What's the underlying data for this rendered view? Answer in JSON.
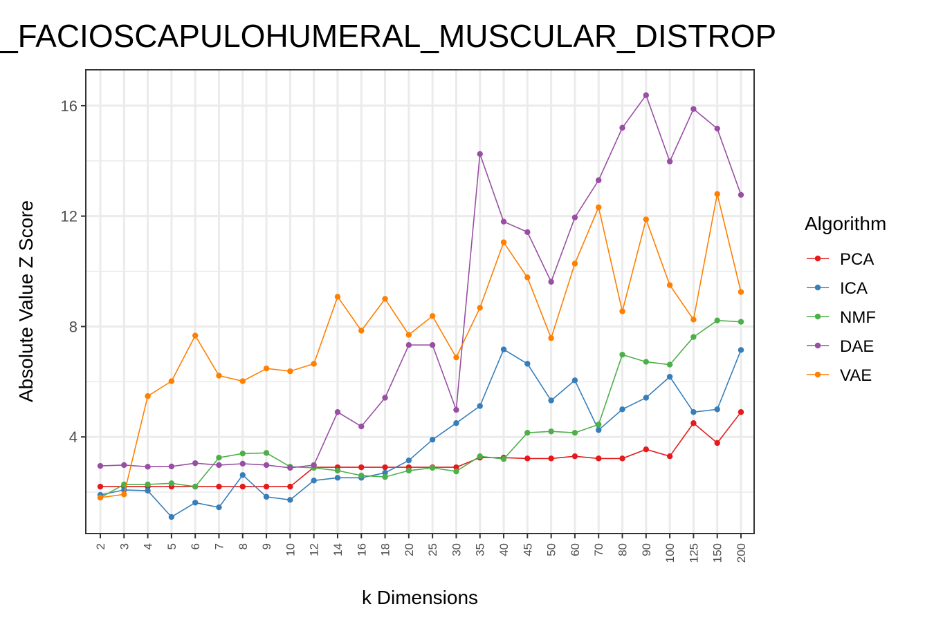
{
  "chart_data": {
    "type": "line",
    "title": "_FACIOSCAPULOHUMERAL_MUSCULAR_DISTROP",
    "xlabel": "k Dimensions",
    "ylabel": "Absolute Value Z Score",
    "ylim": [
      0.5,
      17.3
    ],
    "yticks": [
      4,
      8,
      12,
      16
    ],
    "grid": true,
    "legend_position": "right",
    "legend_title": "Algorithm",
    "categories": [
      "2",
      "3",
      "4",
      "5",
      "6",
      "7",
      "8",
      "9",
      "10",
      "12",
      "14",
      "16",
      "18",
      "20",
      "25",
      "30",
      "35",
      "40",
      "45",
      "50",
      "60",
      "70",
      "80",
      "90",
      "100",
      "125",
      "150",
      "200"
    ],
    "series": [
      {
        "name": "PCA",
        "color": "#e41a1c",
        "values": [
          2.2,
          2.2,
          2.2,
          2.2,
          2.2,
          2.2,
          2.2,
          2.2,
          2.2,
          2.9,
          2.9,
          2.9,
          2.9,
          2.9,
          2.9,
          2.9,
          3.25,
          3.25,
          3.22,
          3.22,
          3.3,
          3.22,
          3.22,
          3.55,
          3.3,
          4.5,
          3.78,
          4.9
        ]
      },
      {
        "name": "ICA",
        "color": "#377eb8",
        "values": [
          1.9,
          2.08,
          2.05,
          1.1,
          1.62,
          1.45,
          2.62,
          1.83,
          1.72,
          2.42,
          2.52,
          2.52,
          2.7,
          3.15,
          3.9,
          4.5,
          5.12,
          7.17,
          6.65,
          5.32,
          6.05,
          4.25,
          5.0,
          5.42,
          6.18,
          4.9,
          5.0,
          7.15
        ]
      },
      {
        "name": "NMF",
        "color": "#4daf4a",
        "values": [
          1.8,
          2.28,
          2.28,
          2.32,
          2.2,
          3.25,
          3.4,
          3.42,
          2.92,
          2.88,
          2.78,
          2.6,
          2.55,
          2.78,
          2.88,
          2.75,
          3.3,
          3.2,
          4.15,
          4.2,
          4.15,
          4.45,
          6.98,
          6.72,
          6.62,
          7.62,
          8.22,
          8.17
        ]
      },
      {
        "name": "DAE",
        "color": "#984ea3",
        "values": [
          2.95,
          2.98,
          2.92,
          2.93,
          3.05,
          2.98,
          3.03,
          2.98,
          2.88,
          2.98,
          4.9,
          4.38,
          5.42,
          7.33,
          7.33,
          4.98,
          14.25,
          11.8,
          11.42,
          9.62,
          11.95,
          13.3,
          15.2,
          16.38,
          13.98,
          15.88,
          15.17,
          12.77
        ]
      },
      {
        "name": "VAE",
        "color": "#ff7f00",
        "values": [
          1.8,
          1.92,
          5.48,
          6.02,
          7.67,
          6.22,
          6.02,
          6.48,
          6.38,
          6.65,
          9.08,
          7.85,
          9.0,
          7.7,
          8.38,
          6.88,
          8.68,
          11.05,
          9.78,
          7.58,
          10.28,
          12.32,
          8.55,
          11.88,
          9.5,
          8.25,
          12.8,
          9.25
        ]
      }
    ]
  }
}
